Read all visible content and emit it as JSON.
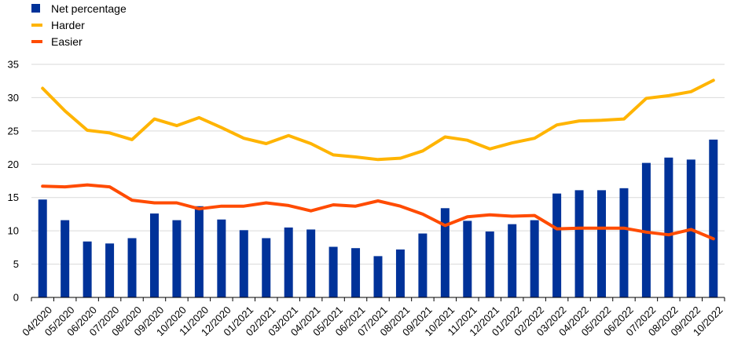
{
  "chart_data": {
    "type": "bar+line",
    "title": "",
    "xlabel": "",
    "ylabel": "",
    "ylim": [
      0,
      35
    ],
    "yticks": [
      0,
      5,
      10,
      15,
      20,
      25,
      30,
      35
    ],
    "grid": true,
    "legend_position": "top-left",
    "categories": [
      "04/2020",
      "05/2020",
      "06/2020",
      "07/2020",
      "08/2020",
      "09/2020",
      "10/2020",
      "11/2020",
      "12/2020",
      "01/2021",
      "02/2021",
      "03/2021",
      "04/2021",
      "05/2021",
      "06/2021",
      "07/2021",
      "08/2021",
      "09/2021",
      "10/2021",
      "11/2021",
      "12/2021",
      "01/2022",
      "02/2022",
      "03/2022",
      "04/2022",
      "05/2022",
      "06/2022",
      "07/2022",
      "08/2022",
      "09/2022",
      "10/2022"
    ],
    "series": [
      {
        "name": "Net percentage",
        "type": "bar",
        "color": "#003299",
        "values": [
          14.7,
          11.6,
          8.4,
          8.1,
          8.9,
          12.6,
          11.6,
          13.7,
          11.7,
          10.1,
          8.9,
          10.5,
          10.2,
          7.6,
          7.4,
          6.2,
          7.2,
          9.6,
          13.4,
          11.5,
          9.9,
          11.0,
          11.6,
          15.6,
          16.1,
          16.1,
          16.4,
          20.2,
          21.0,
          20.7,
          23.7
        ]
      },
      {
        "name": "Harder",
        "type": "line",
        "color": "#FFB400",
        "values": [
          31.4,
          28.0,
          25.1,
          24.7,
          23.7,
          26.8,
          25.8,
          27.0,
          25.5,
          23.9,
          23.1,
          24.3,
          23.1,
          21.4,
          21.1,
          20.7,
          20.9,
          22.0,
          24.1,
          23.6,
          22.3,
          23.2,
          23.9,
          25.9,
          26.5,
          26.6,
          26.8,
          29.9,
          30.3,
          30.9,
          32.6
        ]
      },
      {
        "name": "Easier",
        "type": "line",
        "color": "#FF4B00",
        "values": [
          16.7,
          16.6,
          16.9,
          16.6,
          14.6,
          14.2,
          14.2,
          13.3,
          13.7,
          13.7,
          14.2,
          13.8,
          13.0,
          13.9,
          13.7,
          14.5,
          13.7,
          12.5,
          10.8,
          12.1,
          12.4,
          12.2,
          12.3,
          10.3,
          10.4,
          10.4,
          10.4,
          9.8,
          9.4,
          10.2,
          8.8
        ]
      }
    ]
  }
}
